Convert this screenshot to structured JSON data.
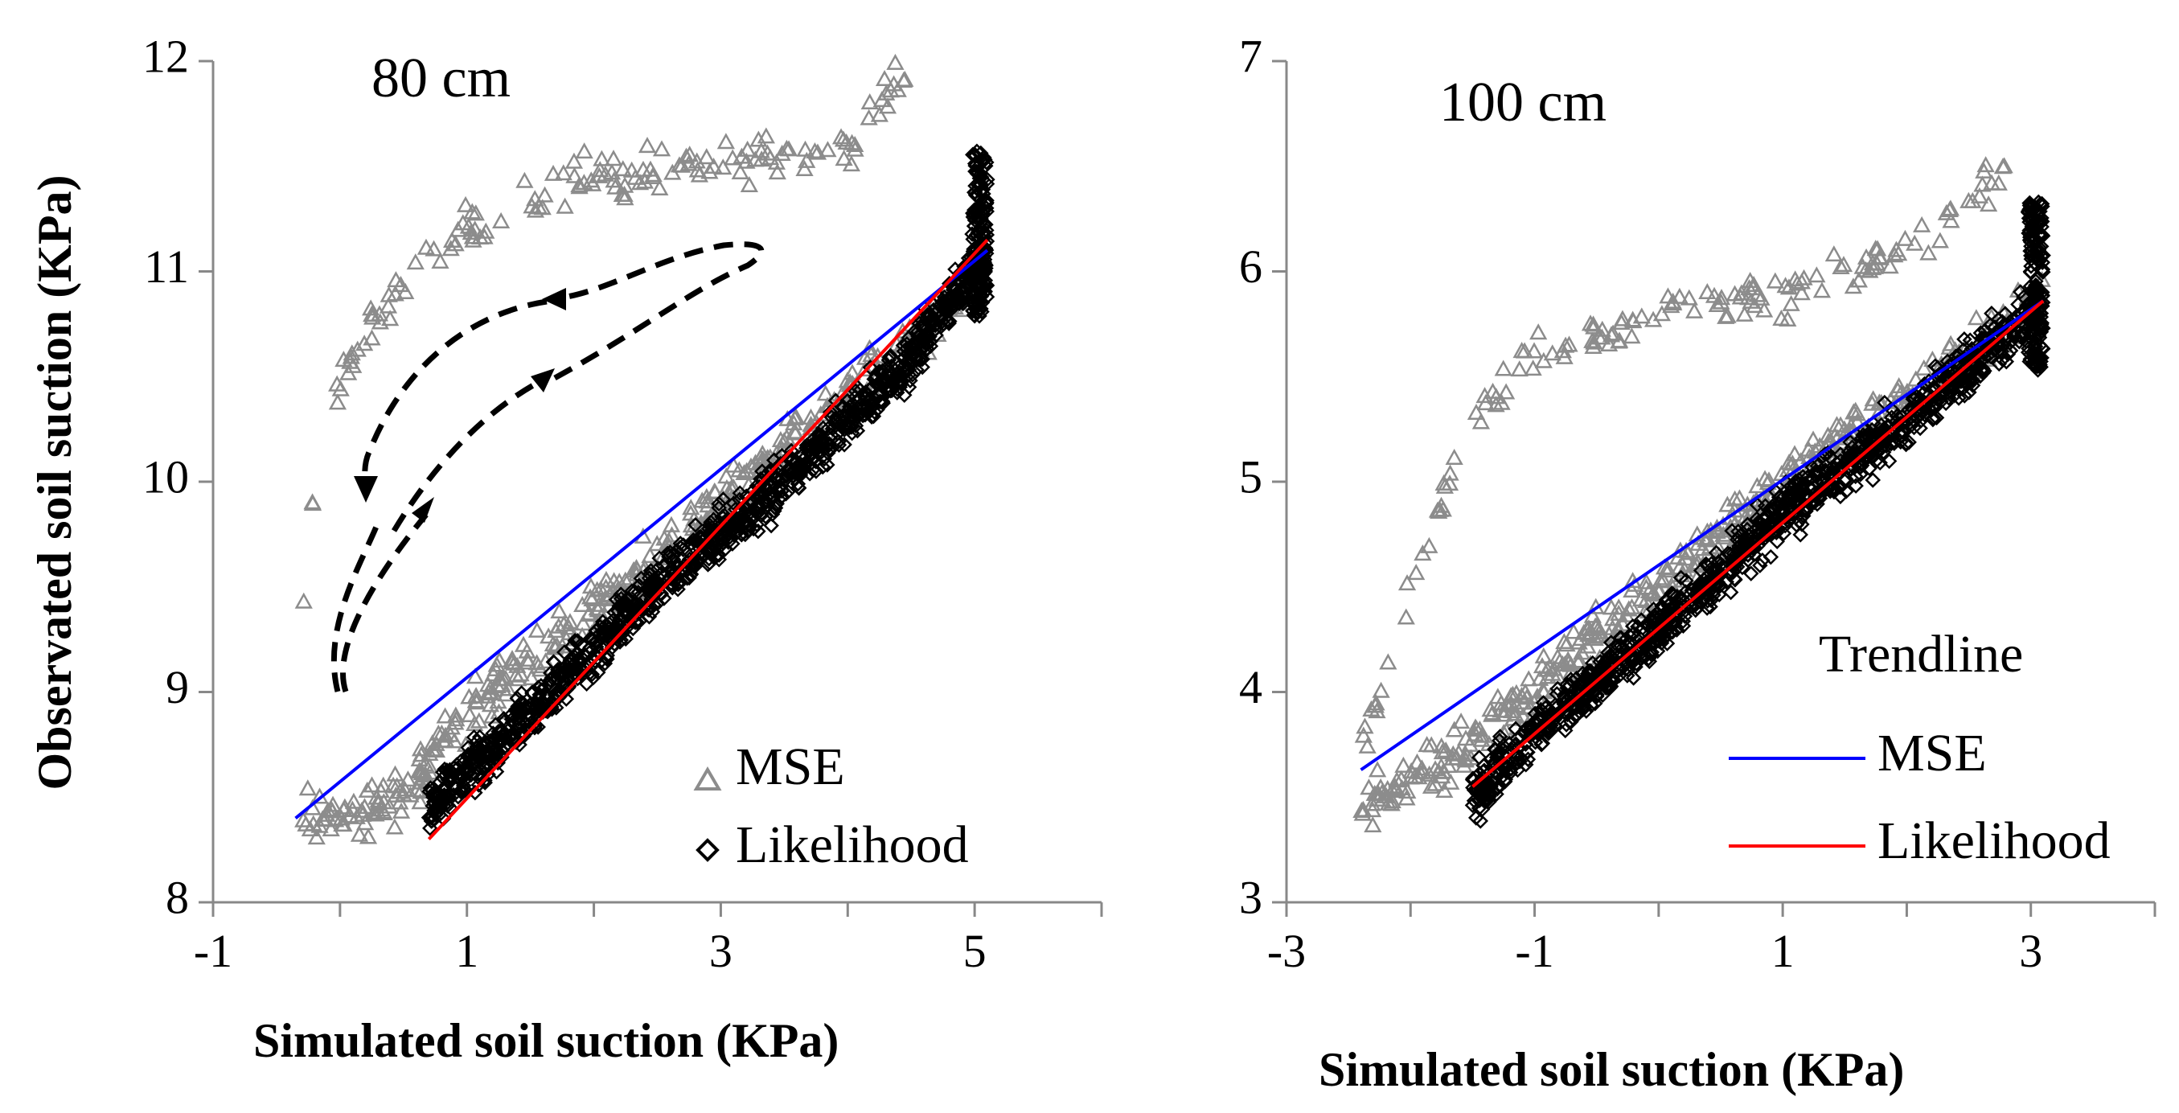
{
  "chart_data": [
    {
      "type": "scatter",
      "title": "80 cm",
      "xlabel": "Simulated soil suction (KPa)",
      "ylabel": "Observated soil suction (KPa)",
      "xlim": [
        -1,
        6
      ],
      "ylim": [
        8,
        12
      ],
      "xticks": [
        -1,
        1,
        3,
        5
      ],
      "yticks": [
        8,
        9,
        10,
        11,
        12
      ],
      "xtick_labels": [
        "-1",
        "1",
        "3",
        "5"
      ],
      "ytick_labels": [
        "8",
        "9",
        "10",
        "11",
        "12"
      ],
      "series": [
        {
          "name": "MSE",
          "marker": "triangle",
          "color": "#8c8c8c",
          "lower_branch": [
            [
              -0.3,
              8.45
            ],
            [
              0.0,
              8.4
            ],
            [
              0.5,
              8.5
            ],
            [
              1.0,
              8.9
            ],
            [
              2.0,
              9.4
            ],
            [
              3.0,
              9.9
            ],
            [
              4.0,
              10.4
            ],
            [
              5.1,
              11.0
            ]
          ],
          "upper_branch": [
            [
              -0.3,
              9.3
            ],
            [
              -0.2,
              10.0
            ],
            [
              0.0,
              10.5
            ],
            [
              0.5,
              10.95
            ],
            [
              1.0,
              11.2
            ],
            [
              2.0,
              11.45
            ],
            [
              3.0,
              11.5
            ],
            [
              4.0,
              11.6
            ],
            [
              4.5,
              12.0
            ]
          ]
        },
        {
          "name": "Likelihood",
          "marker": "diamond",
          "color": "#000000",
          "center": [
            [
              0.7,
              8.45
            ],
            [
              1.5,
              8.9
            ],
            [
              2.5,
              9.5
            ],
            [
              3.5,
              10.0
            ],
            [
              4.5,
              10.6
            ],
            [
              5.1,
              11.1
            ]
          ]
        }
      ],
      "trendlines": [
        {
          "name": "MSE",
          "color": "#0000ff",
          "x": [
            -0.35,
            5.1
          ],
          "y": [
            8.4,
            11.1
          ]
        },
        {
          "name": "Likelihood",
          "color": "#ff0000",
          "x": [
            0.7,
            5.1
          ],
          "y": [
            8.3,
            11.15
          ]
        }
      ],
      "legend": [
        "MSE",
        "Likelihood"
      ],
      "legend_position": "bottom-right",
      "hysteresis_arrows": true
    },
    {
      "type": "scatter",
      "title": "100 cm",
      "xlabel": "Simulated soil suction (KPa)",
      "ylabel": "",
      "xlim": [
        -3,
        4
      ],
      "ylim": [
        3,
        7
      ],
      "xticks": [
        -3,
        -1,
        1,
        3
      ],
      "yticks": [
        3,
        4,
        5,
        6,
        7
      ],
      "xtick_labels": [
        "-3",
        "-1",
        "1",
        "3"
      ],
      "ytick_labels": [
        "3",
        "4",
        "5",
        "6",
        "7"
      ],
      "series": [
        {
          "name": "MSE",
          "marker": "triangle",
          "color": "#8c8c8c",
          "lower_branch": [
            [
              -2.4,
              3.45
            ],
            [
              -2.0,
              3.55
            ],
            [
              -1.0,
              4.0
            ],
            [
              0.0,
              4.5
            ],
            [
              1.0,
              5.0
            ],
            [
              2.0,
              5.4
            ],
            [
              3.1,
              5.85
            ]
          ],
          "upper_branch": [
            [
              -2.4,
              3.7
            ],
            [
              -2.0,
              4.5
            ],
            [
              -1.5,
              5.3
            ],
            [
              -1.0,
              5.6
            ],
            [
              0.0,
              5.8
            ],
            [
              1.0,
              5.9
            ],
            [
              2.0,
              6.1
            ],
            [
              2.8,
              6.5
            ]
          ]
        },
        {
          "name": "Likelihood",
          "marker": "diamond",
          "color": "#000000",
          "center": [
            [
              -1.5,
              3.5
            ],
            [
              -1.0,
              3.8
            ],
            [
              0.0,
              4.3
            ],
            [
              1.0,
              4.85
            ],
            [
              2.0,
              5.3
            ],
            [
              3.1,
              5.85
            ]
          ]
        }
      ],
      "trendlines": [
        {
          "name": "MSE",
          "color": "#0000ff",
          "x": [
            -2.4,
            3.1
          ],
          "y": [
            3.63,
            5.86
          ]
        },
        {
          "name": "Likelihood",
          "color": "#ff0000",
          "x": [
            -1.5,
            3.1
          ],
          "y": [
            3.55,
            5.86
          ]
        }
      ],
      "legend_title": "Trendline",
      "legend": [
        "MSE",
        "Likelihood"
      ],
      "legend_position": "bottom-right"
    }
  ]
}
